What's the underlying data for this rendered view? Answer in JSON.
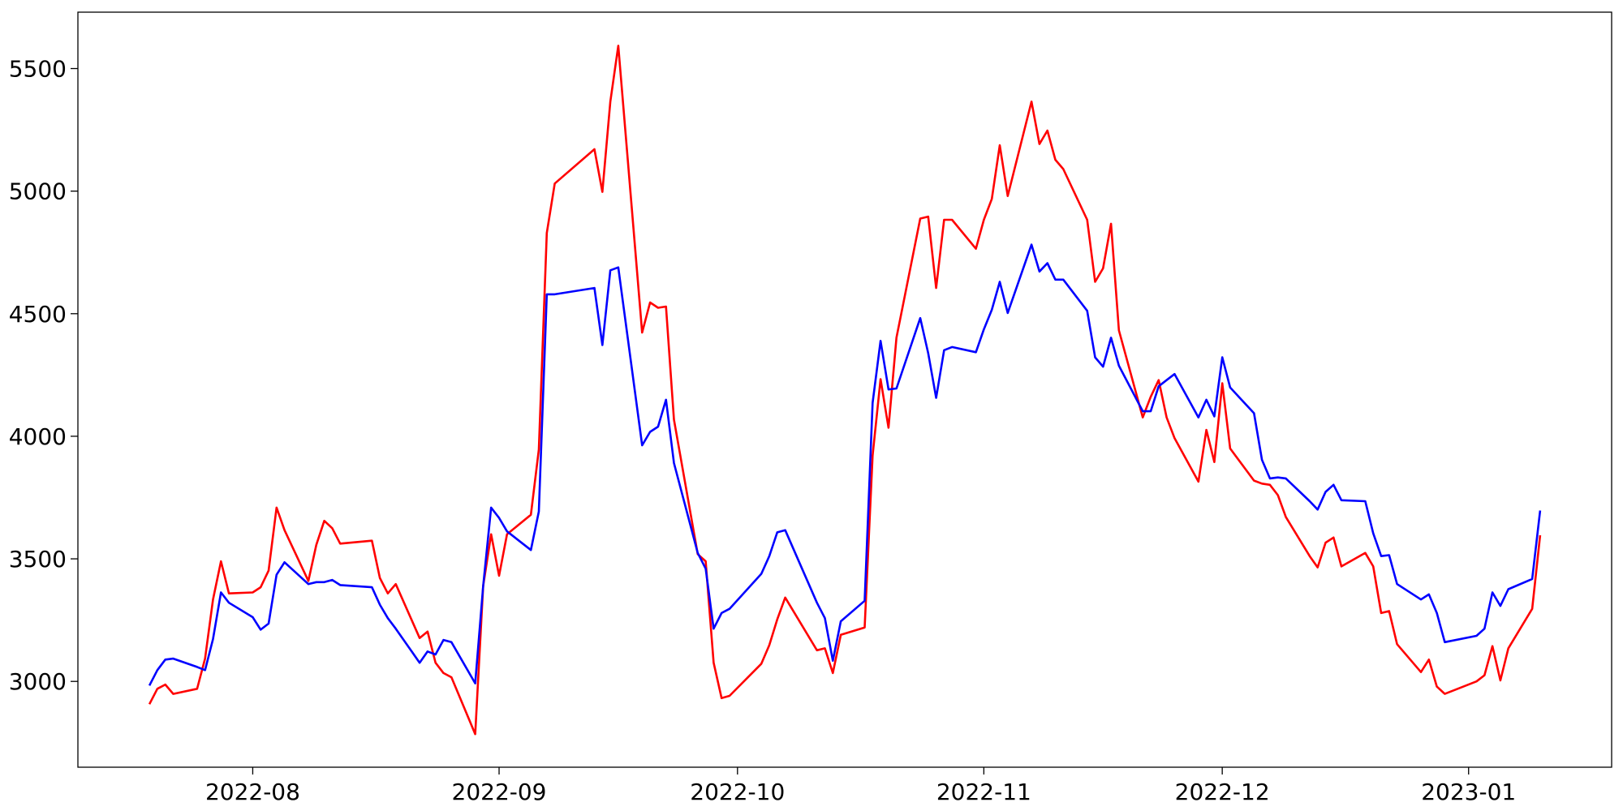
{
  "chart_data": {
    "type": "line",
    "x": [
      "2022-07-19",
      "2022-07-20",
      "2022-07-21",
      "2022-07-22",
      "2022-07-25",
      "2022-07-26",
      "2022-07-27",
      "2022-07-28",
      "2022-07-29",
      "2022-08-01",
      "2022-08-02",
      "2022-08-03",
      "2022-08-04",
      "2022-08-05",
      "2022-08-08",
      "2022-08-09",
      "2022-08-10",
      "2022-08-11",
      "2022-08-12",
      "2022-08-16",
      "2022-08-17",
      "2022-08-18",
      "2022-08-19",
      "2022-08-22",
      "2022-08-23",
      "2022-08-24",
      "2022-08-25",
      "2022-08-26",
      "2022-08-29",
      "2022-08-30",
      "2022-08-31",
      "2022-09-01",
      "2022-09-02",
      "2022-09-05",
      "2022-09-06",
      "2022-09-07",
      "2022-09-08",
      "2022-09-13",
      "2022-09-14",
      "2022-09-15",
      "2022-09-16",
      "2022-09-19",
      "2022-09-20",
      "2022-09-21",
      "2022-09-22",
      "2022-09-23",
      "2022-09-26",
      "2022-09-27",
      "2022-09-28",
      "2022-09-29",
      "2022-09-30",
      "2022-10-04",
      "2022-10-05",
      "2022-10-06",
      "2022-10-07",
      "2022-10-11",
      "2022-10-12",
      "2022-10-13",
      "2022-10-14",
      "2022-10-17",
      "2022-10-18",
      "2022-10-19",
      "2022-10-20",
      "2022-10-21",
      "2022-10-24",
      "2022-10-25",
      "2022-10-26",
      "2022-10-27",
      "2022-10-28",
      "2022-10-31",
      "2022-11-01",
      "2022-11-02",
      "2022-11-03",
      "2022-11-04",
      "2022-11-07",
      "2022-11-08",
      "2022-11-09",
      "2022-11-10",
      "2022-11-11",
      "2022-11-14",
      "2022-11-15",
      "2022-11-16",
      "2022-11-17",
      "2022-11-18",
      "2022-11-21",
      "2022-11-22",
      "2022-11-23",
      "2022-11-24",
      "2022-11-25",
      "2022-11-28",
      "2022-11-29",
      "2022-11-30",
      "2022-12-01",
      "2022-12-02",
      "2022-12-05",
      "2022-12-06",
      "2022-12-07",
      "2022-12-08",
      "2022-12-09",
      "2022-12-12",
      "2022-12-13",
      "2022-12-14",
      "2022-12-15",
      "2022-12-16",
      "2022-12-19",
      "2022-12-20",
      "2022-12-21",
      "2022-12-22",
      "2022-12-23",
      "2022-12-26",
      "2022-12-27",
      "2022-12-28",
      "2022-12-29",
      "2023-01-02",
      "2023-01-03",
      "2023-01-04",
      "2023-01-05",
      "2023-01-06",
      "2023-01-09",
      "2023-01-10"
    ],
    "series": [
      {
        "color": "#ff0000",
        "values": [
          2907,
          2970,
          2987,
          2949,
          2970,
          3093,
          3334,
          3490,
          3359,
          3363,
          3384,
          3452,
          3709,
          3617,
          3410,
          3557,
          3655,
          3625,
          3562,
          3574,
          3422,
          3359,
          3397,
          3177,
          3203,
          3076,
          3034,
          3017,
          2785,
          3389,
          3600,
          3431,
          3600,
          3680,
          3946,
          4829,
          5031,
          5171,
          4997,
          5365,
          5593,
          4423,
          4546,
          4524,
          4529,
          4068,
          3519,
          3490,
          3076,
          2932,
          2941,
          3072,
          3148,
          3253,
          3342,
          3127,
          3135,
          3034,
          3190,
          3220,
          3921,
          4233,
          4035,
          4402,
          4888,
          4896,
          4605,
          4883,
          4883,
          4765,
          4883,
          4968,
          5187,
          4980,
          5365,
          5192,
          5247,
          5128,
          5090,
          4883,
          4630,
          4685,
          4867,
          4432,
          4077,
          4161,
          4229,
          4077,
          3992,
          3815,
          4026,
          3895,
          4216,
          3950,
          3819,
          3807,
          3802,
          3760,
          3671,
          3511,
          3465,
          3566,
          3587,
          3469,
          3524,
          3469,
          3279,
          3287,
          3152,
          3038,
          3089,
          2979,
          2949,
          3000,
          3025,
          3144,
          3004,
          3135,
          3296,
          3596
        ]
      },
      {
        "color": "#0000ff",
        "values": [
          2983,
          3046,
          3089,
          3093,
          3059,
          3046,
          3173,
          3363,
          3321,
          3262,
          3211,
          3236,
          3435,
          3486,
          3397,
          3405,
          3405,
          3414,
          3393,
          3384,
          3313,
          3258,
          3215,
          3076,
          3122,
          3110,
          3169,
          3160,
          2992,
          3389,
          3709,
          3667,
          3612,
          3536,
          3693,
          4579,
          4579,
          4605,
          4372,
          4677,
          4689,
          3963,
          4018,
          4039,
          4149,
          3891,
          3524,
          3460,
          3215,
          3279,
          3296,
          3439,
          3511,
          3608,
          3617,
          3321,
          3258,
          3084,
          3245,
          3329,
          4136,
          4389,
          4191,
          4195,
          4482,
          4339,
          4157,
          4351,
          4364,
          4343,
          4436,
          4516,
          4630,
          4503,
          4782,
          4672,
          4706,
          4639,
          4639,
          4512,
          4322,
          4284,
          4402,
          4288,
          4102,
          4102,
          4204,
          4229,
          4254,
          4077,
          4149,
          4081,
          4322,
          4199,
          4094,
          3904,
          3828,
          3832,
          3828,
          3735,
          3701,
          3773,
          3802,
          3739,
          3735,
          3604,
          3511,
          3515,
          3397,
          3334,
          3355,
          3279,
          3160,
          3186,
          3215,
          3363,
          3308,
          3376,
          3418,
          3697
        ]
      }
    ],
    "xlim": [
      "2022-07-10",
      "2023-01-19"
    ],
    "xticks": [
      "2022-08",
      "2022-09",
      "2022-10",
      "2022-11",
      "2022-12",
      "2023-01"
    ],
    "ylim": [
      2650,
      5730
    ],
    "yticks": [
      3000,
      3500,
      4000,
      4500,
      5000,
      5500
    ],
    "grid": false
  }
}
